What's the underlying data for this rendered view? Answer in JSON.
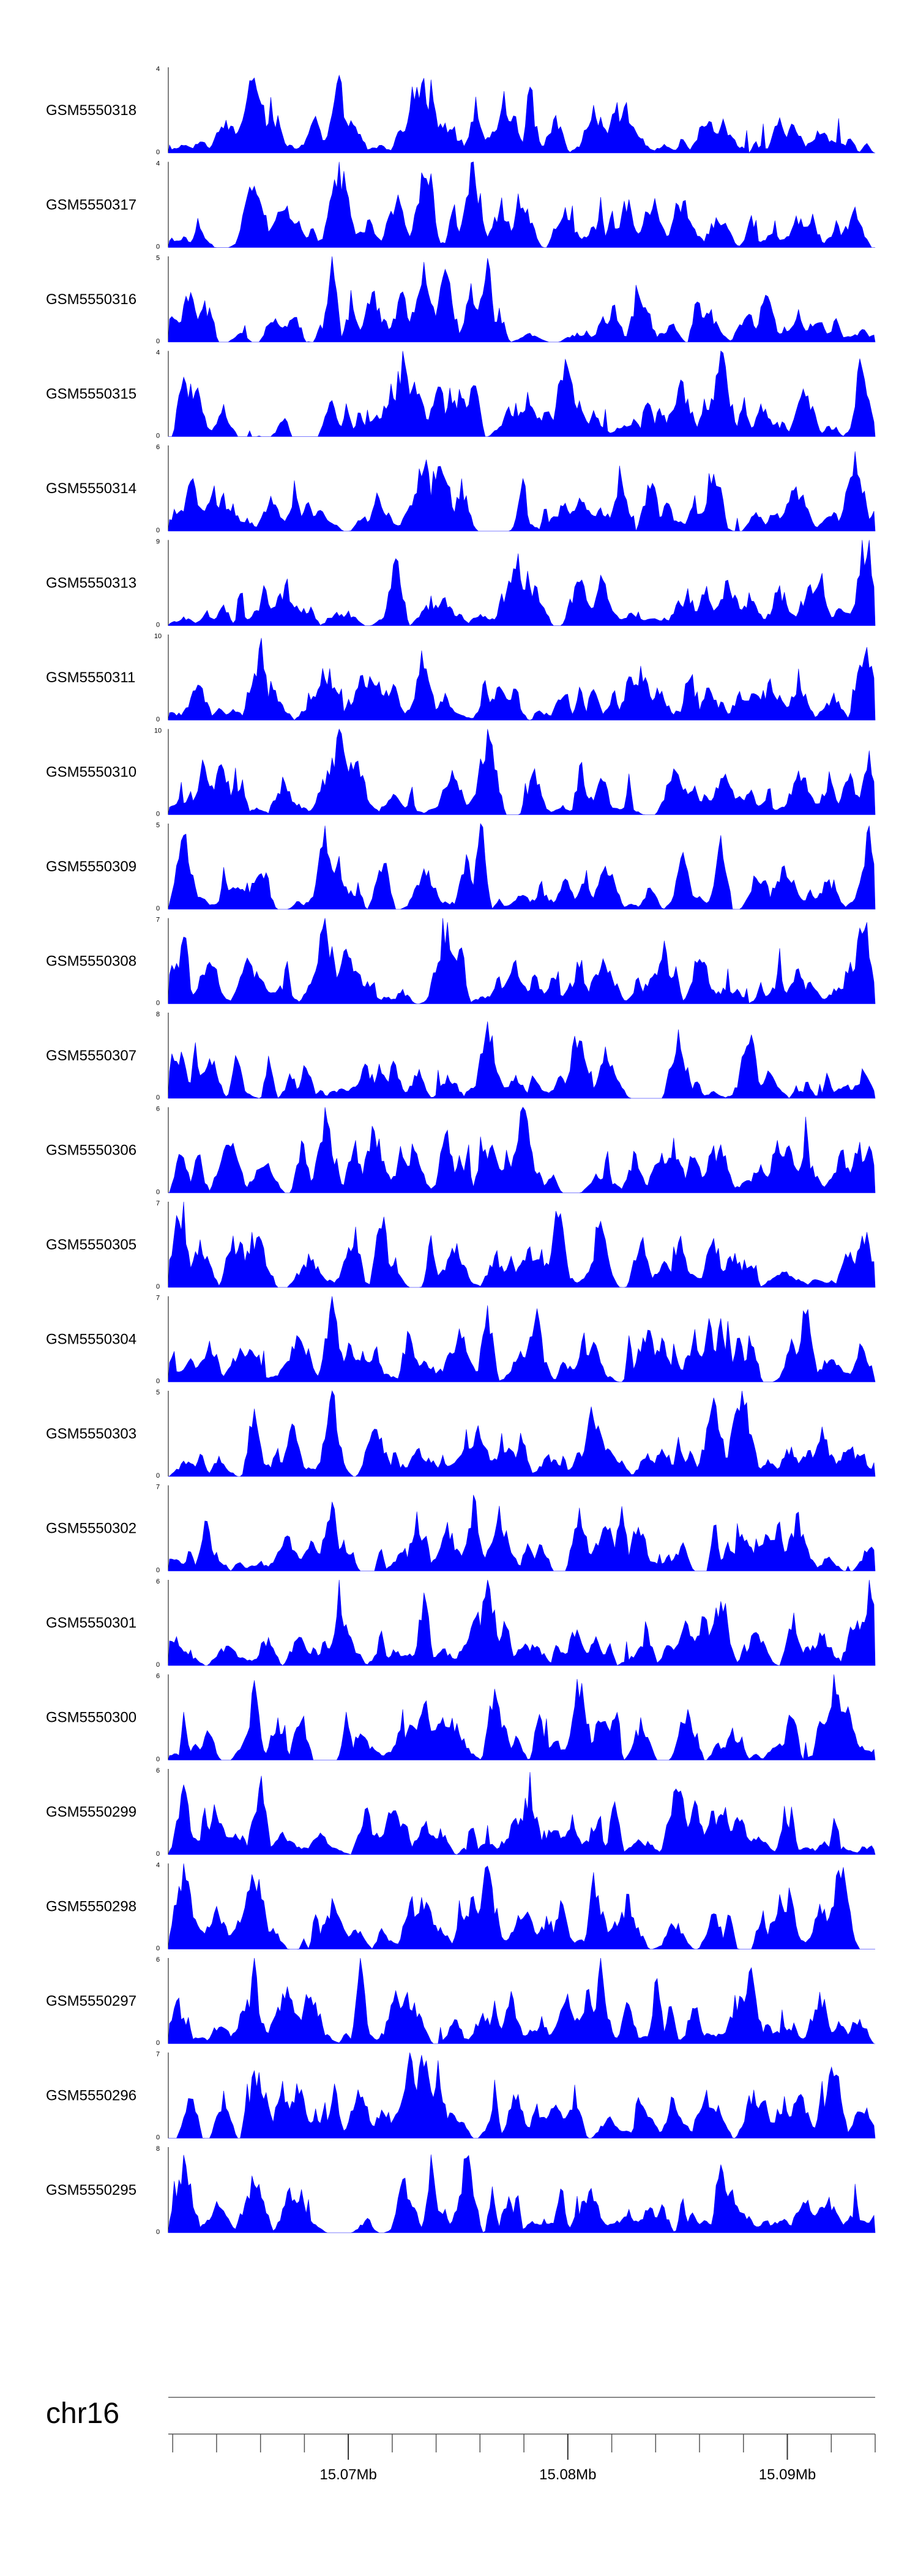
{
  "chart_data": {
    "type": "area",
    "title": "",
    "x_axis": {
      "chromosome": "chr16",
      "range_mb": [
        15.0618,
        15.094
      ],
      "major_ticks_mb": [
        15.07,
        15.08,
        15.09
      ],
      "major_tick_labels": [
        "15.07Mb",
        "15.08Mb",
        "15.09Mb"
      ],
      "minor_tick_step_mb": 0.002
    },
    "tracks": [
      {
        "name": "GSM5550318",
        "ymax": 4,
        "ymin": 0,
        "seed": 318,
        "peaks_at": [
          0.12,
          0.24,
          0.35,
          0.36,
          0.37,
          0.51
        ],
        "baseline_fraction": 0.18
      },
      {
        "name": "GSM5550317",
        "ymax": 4,
        "ymin": 0,
        "seed": 317,
        "peaks_at": [
          0.12,
          0.24,
          0.36,
          0.37,
          0.43
        ],
        "baseline_fraction": 0.2
      },
      {
        "name": "GSM5550316",
        "ymax": 5,
        "ymin": 0,
        "seed": 316,
        "peaks_at": [
          0.23,
          0.36,
          0.39,
          0.45
        ],
        "baseline_fraction": 0.2
      },
      {
        "name": "GSM5550315",
        "ymax": 4,
        "ymin": 0,
        "seed": 315,
        "peaks_at": [
          0.02,
          0.33,
          0.43,
          0.56,
          0.78,
          0.98
        ],
        "baseline_fraction": 0.2
      },
      {
        "name": "GSM5550314",
        "ymax": 6,
        "ymin": 0,
        "seed": 314,
        "peaks_at": [
          0.36,
          0.38,
          0.77,
          0.97
        ],
        "baseline_fraction": 0.15
      },
      {
        "name": "GSM5550313",
        "ymax": 9,
        "ymin": 0,
        "seed": 313,
        "peaks_at": [
          0.32,
          0.49,
          0.98,
          0.99
        ],
        "baseline_fraction": 0.12
      },
      {
        "name": "GSM5550311",
        "ymax": 10,
        "ymin": 0,
        "seed": 311,
        "peaks_at": [
          0.13,
          0.36,
          0.98,
          0.99
        ],
        "baseline_fraction": 0.1
      },
      {
        "name": "GSM5550310",
        "ymax": 10,
        "ymin": 0,
        "seed": 310,
        "peaks_at": [
          0.24,
          0.45,
          0.99
        ],
        "baseline_fraction": 0.1
      },
      {
        "name": "GSM5550309",
        "ymax": 5,
        "ymin": 0,
        "seed": 309,
        "peaks_at": [
          0.02,
          0.22,
          0.44,
          0.78,
          0.99
        ],
        "baseline_fraction": 0.18
      },
      {
        "name": "GSM5550308",
        "ymax": 7,
        "ymin": 0,
        "seed": 308,
        "peaks_at": [
          0.02,
          0.22,
          0.39,
          0.41,
          0.98
        ],
        "baseline_fraction": 0.12
      },
      {
        "name": "GSM5550307",
        "ymax": 8,
        "ymin": 0,
        "seed": 307,
        "peaks_at": [
          0.45,
          0.58,
          0.72,
          0.82
        ],
        "baseline_fraction": 0.1
      },
      {
        "name": "GSM5550306",
        "ymax": 6,
        "ymin": 0,
        "seed": 306,
        "peaks_at": [
          0.22,
          0.29,
          0.39,
          0.5,
          0.9
        ],
        "baseline_fraction": 0.14
      },
      {
        "name": "GSM5550305",
        "ymax": 7,
        "ymin": 0,
        "seed": 305,
        "peaks_at": [
          0.01,
          0.02,
          0.3,
          0.55,
          0.61
        ],
        "baseline_fraction": 0.14
      },
      {
        "name": "GSM5550304",
        "ymax": 7,
        "ymin": 0,
        "seed": 304,
        "peaks_at": [
          0.23,
          0.45,
          0.52,
          0.78,
          0.9
        ],
        "baseline_fraction": 0.14
      },
      {
        "name": "GSM5550303",
        "ymax": 5,
        "ymin": 0,
        "seed": 303,
        "peaks_at": [
          0.12,
          0.23,
          0.6,
          0.77,
          0.81
        ],
        "baseline_fraction": 0.16
      },
      {
        "name": "GSM5550302",
        "ymax": 7,
        "ymin": 0,
        "seed": 302,
        "peaks_at": [
          0.23,
          0.43,
          0.58,
          0.64
        ],
        "baseline_fraction": 0.12
      },
      {
        "name": "GSM5550301",
        "ymax": 6,
        "ymin": 0,
        "seed": 301,
        "peaks_at": [
          0.24,
          0.36,
          0.45,
          0.78,
          0.99
        ],
        "baseline_fraction": 0.14
      },
      {
        "name": "GSM5550300",
        "ymax": 6,
        "ymin": 0,
        "seed": 300,
        "peaks_at": [
          0.12,
          0.36,
          0.46,
          0.58,
          0.94
        ],
        "baseline_fraction": 0.14
      },
      {
        "name": "GSM5550299",
        "ymax": 6,
        "ymin": 0,
        "seed": 299,
        "peaks_at": [
          0.02,
          0.13,
          0.51,
          0.63,
          0.72
        ],
        "baseline_fraction": 0.16
      },
      {
        "name": "GSM5550298",
        "ymax": 4,
        "ymin": 0,
        "seed": 298,
        "peaks_at": [
          0.02,
          0.12,
          0.45,
          0.6,
          0.95
        ],
        "baseline_fraction": 0.2
      },
      {
        "name": "GSM5550297",
        "ymax": 6,
        "ymin": 0,
        "seed": 297,
        "peaks_at": [
          0.12,
          0.27,
          0.61,
          0.69,
          0.82
        ],
        "baseline_fraction": 0.14
      },
      {
        "name": "GSM5550296",
        "ymax": 7,
        "ymin": 0,
        "seed": 296,
        "peaks_at": [
          0.12,
          0.34,
          0.36,
          0.38,
          0.94
        ],
        "baseline_fraction": 0.14
      },
      {
        "name": "GSM5550295",
        "ymax": 8,
        "ymin": 0,
        "seed": 295,
        "peaks_at": [
          0.02,
          0.33,
          0.37,
          0.42,
          0.78
        ],
        "baseline_fraction": 0.14
      }
    ],
    "fill_color": "#0000ff",
    "axis_color": "#000000",
    "tick_label_color": "#000000"
  }
}
